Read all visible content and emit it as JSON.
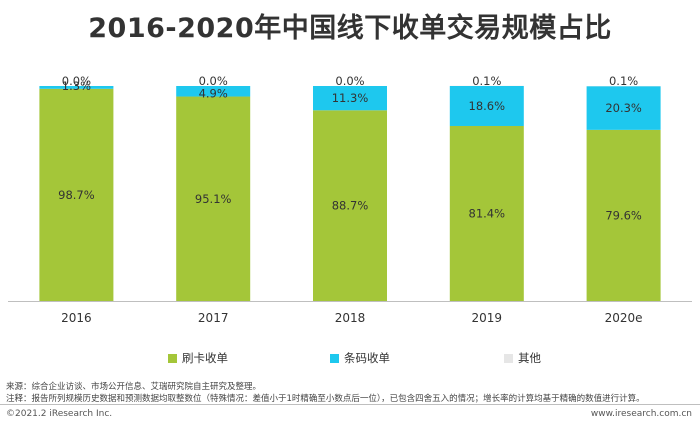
{
  "chart_data": {
    "type": "bar",
    "stacked": true,
    "title": "2016-2020年中国线下收单交易规模占比",
    "categories": [
      "2016",
      "2017",
      "2018",
      "2019",
      "2020e"
    ],
    "series": [
      {
        "name": "刷卡收单",
        "color": "#a4c639",
        "values": [
          98.7,
          95.1,
          88.7,
          81.4,
          79.6
        ],
        "labels": [
          "98.7%",
          "95.1%",
          "88.7%",
          "81.4%",
          "79.6%"
        ]
      },
      {
        "name": "条码收单",
        "color": "#1ec8ee",
        "values": [
          1.3,
          4.9,
          11.3,
          18.6,
          20.3
        ],
        "labels": [
          "1.3%",
          "4.9%",
          "11.3%",
          "18.6%",
          "20.3%"
        ]
      },
      {
        "name": "其他",
        "color": "#e6e6e6",
        "values": [
          0.0,
          0.0,
          0.0,
          0.1,
          0.1
        ],
        "labels": [
          "0.0%",
          "0.0%",
          "0.0%",
          "0.1%",
          "0.1%"
        ]
      }
    ],
    "ylim": [
      0,
      100
    ],
    "xlabel": "",
    "ylabel": "",
    "legend_position": "bottom"
  },
  "notes": {
    "source": "来源：综合企业访谈、市场公开信息、艾瑞研究院自主研究及整理。",
    "note": "注释：报告所列规模历史数据和预测数据均取整数位（特殊情况：差值小于1时精确至小数点后一位），已包含四舍五入的情况；增长率的计算均基于精确的数值进行计算。"
  },
  "footer": {
    "copyright": "©2021.2 iResearch Inc.",
    "website": "www.iresearch.com.cn"
  }
}
